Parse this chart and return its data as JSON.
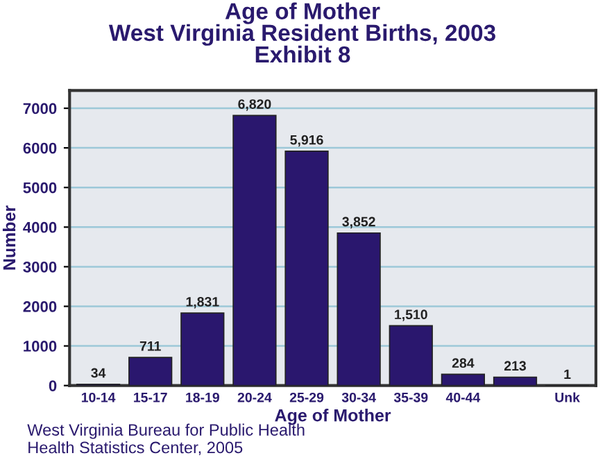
{
  "chart_data": {
    "type": "bar",
    "title": "Age of Mother\nWest Virginia Resident Births, 2003\nExhibit 8",
    "xlabel": "Age of Mother",
    "ylabel": "Number",
    "categories": [
      "10-14",
      "15-17",
      "18-19",
      "20-24",
      "25-29",
      "30-34",
      "35-39",
      "40-44",
      null,
      "Unk"
    ],
    "values": [
      34,
      711,
      1831,
      6820,
      5916,
      3852,
      1510,
      284,
      213,
      1
    ],
    "value_labels": [
      "34",
      "711",
      "1,831",
      "6,820",
      "5,916",
      "3,852",
      "1,510",
      "284",
      "213",
      "1"
    ],
    "color": "#2a176e",
    "ylim": [
      0,
      7450
    ],
    "yticks": [
      0,
      1000,
      2000,
      3000,
      4000,
      5000,
      6000,
      7000
    ],
    "grid": "y",
    "legend": false,
    "annotations": [
      "West Virginia Bureau for Public Health\nHealth Statistics Center, 2005"
    ]
  }
}
